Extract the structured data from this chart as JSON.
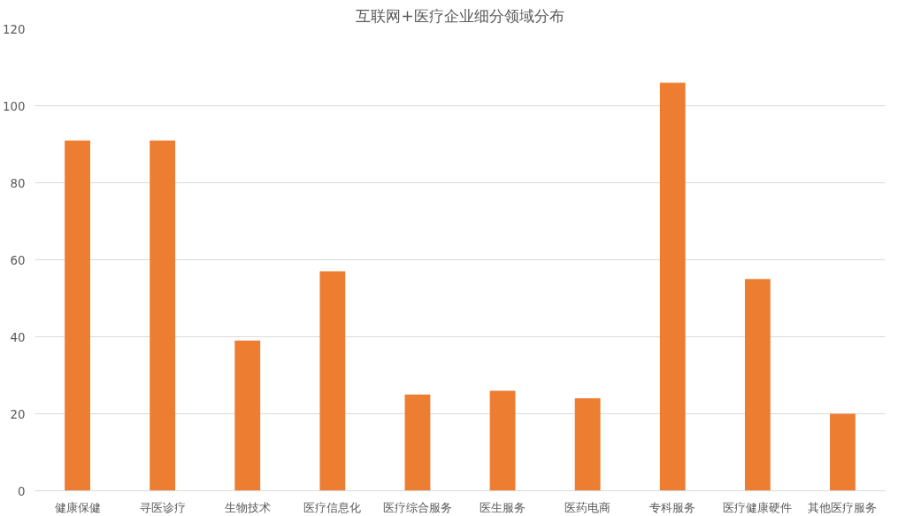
{
  "chart_data": {
    "type": "bar",
    "title": "互联网+医疗企业细分领域分布",
    "categories": [
      "健康保健",
      "寻医诊疗",
      "生物技术",
      "医疗信息化",
      "医疗综合服务",
      "医生服务",
      "医药电商",
      "专科服务",
      "医疗健康硬件",
      "其他医疗服务"
    ],
    "values": [
      91,
      91,
      39,
      57,
      25,
      26,
      24,
      106,
      55,
      20
    ],
    "color": "#ed7d31",
    "ylim": [
      0,
      120
    ],
    "yticks": [
      0,
      20,
      40,
      60,
      80,
      100,
      120
    ],
    "grid": "y"
  }
}
